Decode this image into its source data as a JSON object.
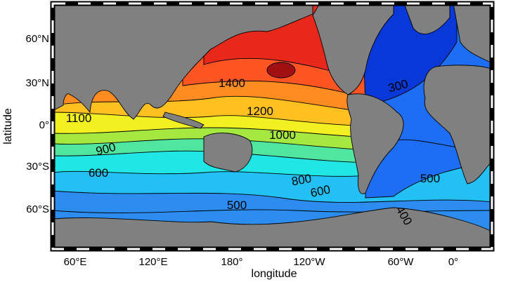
{
  "map": {
    "ylabel": "latitude",
    "xlabel": "longitude",
    "xticks": [
      "60°E",
      "120°E",
      "180°",
      "120°W",
      "60°W",
      "0°"
    ],
    "yticks": [
      "60°N",
      "30°N",
      "0°",
      "30°S",
      "60°S"
    ],
    "contour_labels": [
      1400,
      1200,
      1100,
      1000,
      900,
      800,
      600,
      600,
      500,
      500,
      300,
      400
    ]
  }
}
